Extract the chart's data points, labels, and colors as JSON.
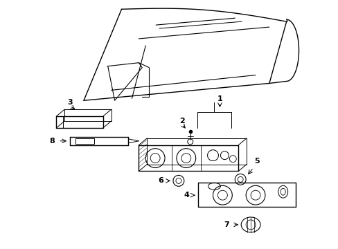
{
  "background_color": "#ffffff",
  "line_color": "#000000",
  "line_width": 1.0,
  "label_fontsize": 7,
  "figsize": [
    4.89,
    3.6
  ],
  "dpi": 100
}
